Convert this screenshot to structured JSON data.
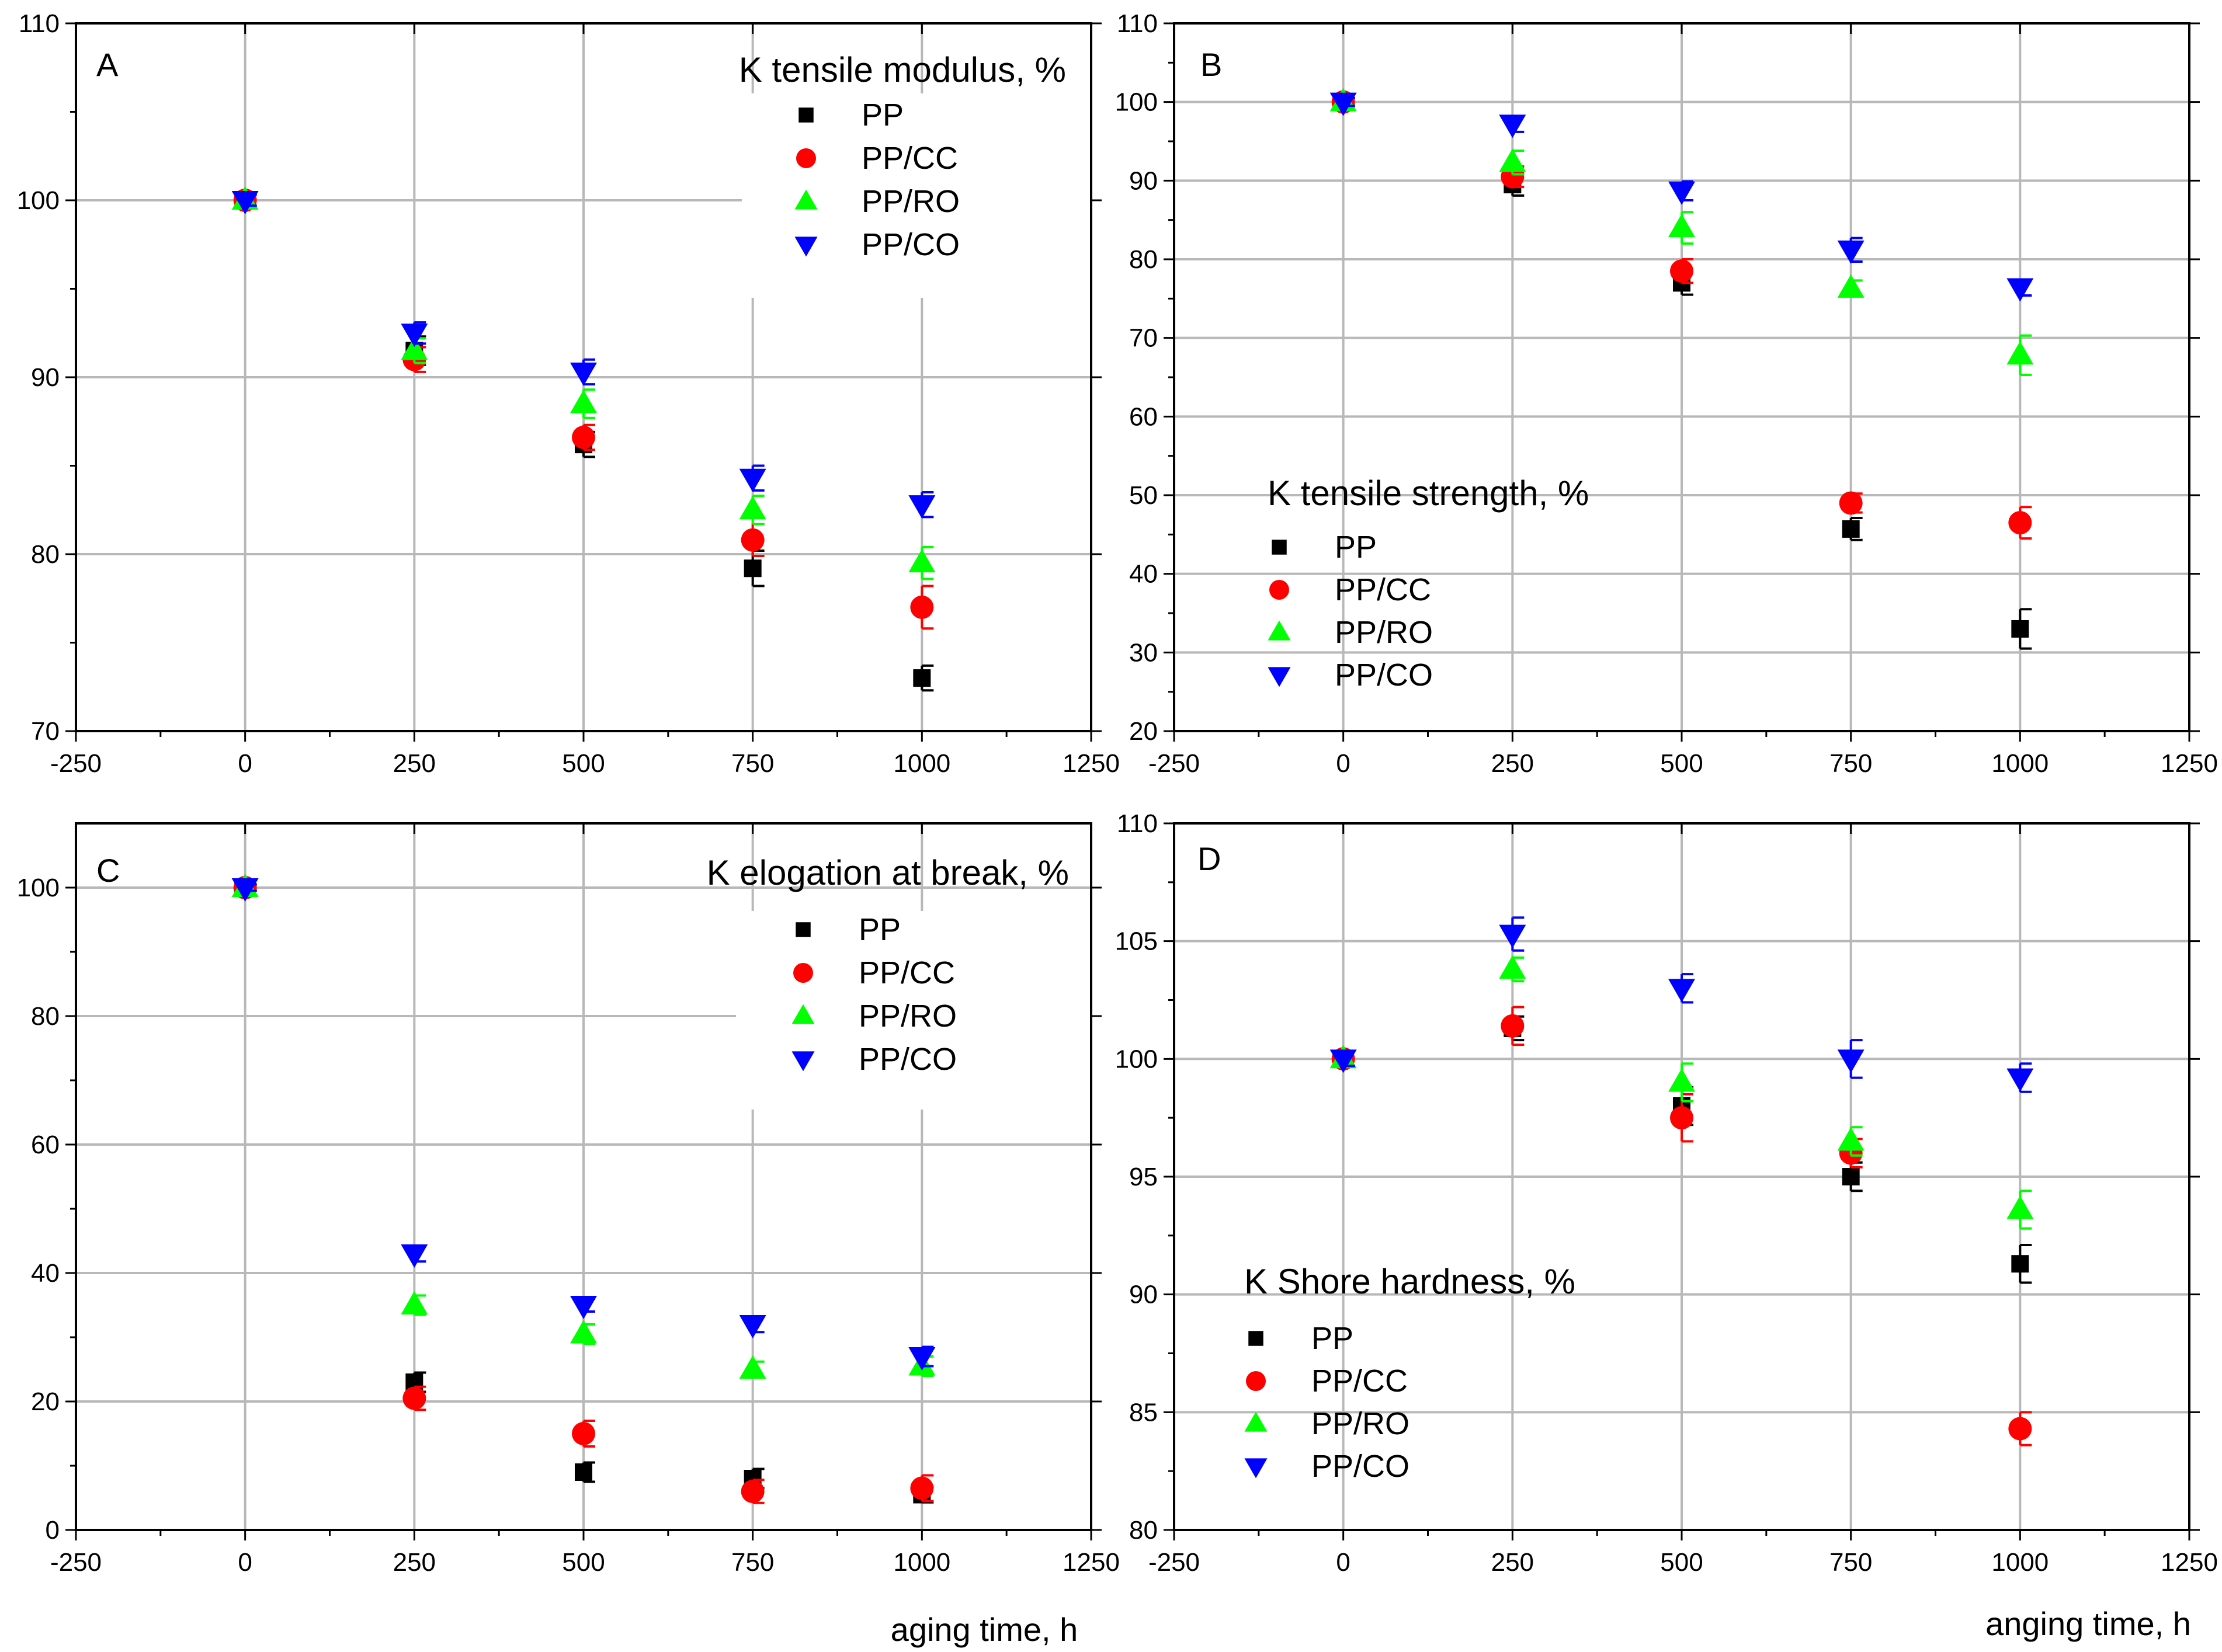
{
  "figure": {
    "xlabels": [
      "aging time, h",
      "anging time, h"
    ]
  },
  "chart_data": [
    {
      "type": "scatter",
      "panel": "A",
      "title": "K tensile modulus, %",
      "xlim": [
        -250,
        1250
      ],
      "xticks": [
        -250,
        0,
        250,
        500,
        750,
        1000,
        1250
      ],
      "ylim": [
        70,
        110
      ],
      "yticks": [
        70,
        80,
        90,
        100,
        110
      ],
      "grid": true,
      "legend_placement": "top-right",
      "x": [
        0,
        250,
        500,
        750,
        1000
      ],
      "series": [
        {
          "name": "PP",
          "marker": "square",
          "color": "#000000",
          "values": [
            100,
            91.5,
            86.2,
            79.2,
            73.0
          ],
          "error": [
            0.4,
            0.8,
            0.7,
            1.0,
            0.7
          ]
        },
        {
          "name": "PP/CC",
          "marker": "circle",
          "color": "#ff0000",
          "values": [
            100,
            91.0,
            86.6,
            80.8,
            77.0
          ],
          "error": [
            0.4,
            0.7,
            0.7,
            0.9,
            1.2
          ]
        },
        {
          "name": "PP/RO",
          "marker": "triangle-up",
          "color": "#00ff00",
          "values": [
            100,
            91.5,
            88.5,
            82.5,
            79.5
          ],
          "error": [
            0.4,
            0.7,
            0.8,
            0.8,
            0.9
          ]
        },
        {
          "name": "PP/CO",
          "marker": "triangle-down",
          "color": "#0000ff",
          "values": [
            100,
            92.5,
            90.3,
            84.3,
            82.8
          ],
          "error": [
            0.3,
            0.6,
            0.7,
            0.7,
            0.7
          ]
        }
      ]
    },
    {
      "type": "scatter",
      "panel": "B",
      "title": "K tensile strength, %",
      "xlim": [
        -250,
        1250
      ],
      "xticks": [
        -250,
        0,
        250,
        500,
        750,
        1000,
        1250
      ],
      "ylim": [
        20,
        110
      ],
      "yticks": [
        20,
        30,
        40,
        50,
        60,
        70,
        80,
        90,
        100,
        110
      ],
      "grid": true,
      "legend_placement": "bottom-left",
      "x": [
        0,
        250,
        500,
        750,
        1000
      ],
      "series": [
        {
          "name": "PP",
          "marker": "square",
          "color": "#000000",
          "values": [
            100,
            89.5,
            77.0,
            45.7,
            33.0
          ],
          "error": [
            0.5,
            1.4,
            1.5,
            1.4,
            2.5
          ]
        },
        {
          "name": "PP/CC",
          "marker": "circle",
          "color": "#ff0000",
          "values": [
            100,
            90.5,
            78.5,
            49.0,
            46.5
          ],
          "error": [
            0.5,
            1.3,
            1.5,
            1.2,
            2.0
          ]
        },
        {
          "name": "PP/RO",
          "marker": "triangle-up",
          "color": "#00ff00",
          "values": [
            100,
            92.3,
            84.0,
            76.3,
            67.8
          ],
          "error": [
            0.5,
            1.5,
            2.0,
            1.0,
            2.5
          ]
        },
        {
          "name": "PP/CO",
          "marker": "triangle-down",
          "color": "#0000ff",
          "values": [
            100,
            97.2,
            88.7,
            81.2,
            76.4
          ],
          "error": [
            0.5,
            1.0,
            1.2,
            1.5,
            1.0
          ]
        }
      ]
    },
    {
      "type": "scatter",
      "panel": "C",
      "title": "K elogation at break, %",
      "xlim": [
        -250,
        1250
      ],
      "xticks": [
        -250,
        0,
        250,
        500,
        750,
        1000,
        1250
      ],
      "ylim": [
        0,
        110
      ],
      "yticks": [
        0,
        20,
        40,
        60,
        80,
        100
      ],
      "grid": true,
      "legend_placement": "top-right",
      "x": [
        0,
        250,
        500,
        750,
        1000
      ],
      "series": [
        {
          "name": "PP",
          "marker": "square",
          "color": "#000000",
          "values": [
            100,
            23.0,
            9.0,
            8.0,
            5.5
          ],
          "error": [
            0.5,
            1.5,
            1.5,
            1.5,
            1.2
          ]
        },
        {
          "name": "PP/CC",
          "marker": "circle",
          "color": "#ff0000",
          "values": [
            100,
            20.5,
            15.0,
            6.0,
            6.5
          ],
          "error": [
            0.5,
            1.8,
            2.0,
            1.8,
            2.0
          ]
        },
        {
          "name": "PP/RO",
          "marker": "triangle-up",
          "color": "#00ff00",
          "values": [
            100,
            35.0,
            30.5,
            25.0,
            25.5
          ],
          "error": [
            0.5,
            1.5,
            1.5,
            1.2,
            1.5
          ]
        },
        {
          "name": "PP/CO",
          "marker": "triangle-down",
          "color": "#0000ff",
          "values": [
            100,
            43.0,
            35.0,
            32.0,
            27.0
          ],
          "error": [
            0.5,
            1.2,
            1.0,
            1.2,
            1.5
          ]
        }
      ]
    },
    {
      "type": "scatter",
      "panel": "D",
      "title": "K Shore hardness, %",
      "xlim": [
        -250,
        1250
      ],
      "xticks": [
        -250,
        0,
        250,
        500,
        750,
        1000,
        1250
      ],
      "ylim": [
        80,
        110
      ],
      "yticks": [
        80,
        85,
        90,
        95,
        100,
        105,
        110
      ],
      "grid": true,
      "legend_placement": "bottom-left",
      "x": [
        0,
        250,
        500,
        750,
        1000
      ],
      "series": [
        {
          "name": "PP",
          "marker": "square",
          "color": "#000000",
          "values": [
            100,
            101.3,
            98.0,
            95.0,
            91.3
          ],
          "error": [
            0.3,
            0.5,
            0.8,
            0.6,
            0.8
          ]
        },
        {
          "name": "PP/CC",
          "marker": "circle",
          "color": "#ff0000",
          "values": [
            100,
            101.4,
            97.5,
            96.0,
            84.3
          ],
          "error": [
            0.3,
            0.8,
            1.0,
            0.6,
            0.7
          ]
        },
        {
          "name": "PP/RO",
          "marker": "triangle-up",
          "color": "#00ff00",
          "values": [
            100,
            103.8,
            99.0,
            96.5,
            93.6
          ],
          "error": [
            0.3,
            0.5,
            0.8,
            0.6,
            0.8
          ]
        },
        {
          "name": "PP/CO",
          "marker": "triangle-down",
          "color": "#0000ff",
          "values": [
            100,
            105.3,
            103.0,
            100.0,
            99.2
          ],
          "error": [
            0.3,
            0.7,
            0.6,
            0.8,
            0.6
          ]
        }
      ]
    }
  ]
}
